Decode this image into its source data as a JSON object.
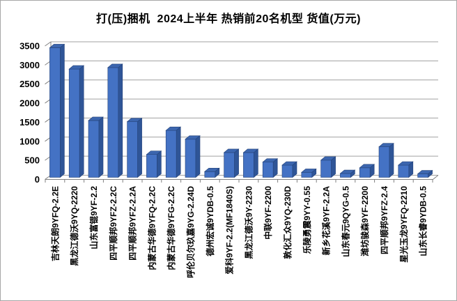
{
  "window": {
    "title": "打(压)捆机  2024上半年 热销前20名机型 货值(万元)"
  },
  "chart_data": {
    "type": "bar",
    "style": "3d-column",
    "title": "打(压)捆机  2024上半年 热销前20名机型 货值(万元)",
    "unit": "万元",
    "categories": [
      "吉林天朗9YFQ-2.2E",
      "黑龙江德沃9YQ-2220",
      "山东富锟9YF-2.2",
      "四平顺邦9YFZ-2.2C",
      "四平顺邦9YFZ-2.2A",
      "内蒙古华德9YFQ-2.2C",
      "内蒙古华德9YFG-2.2C",
      "呼伦贝尔玖嘉9YG-2.24D",
      "德州宏诚9YDB-0.5",
      "爱科9YF-2.2(MF1840S)",
      "黑龙江德沃9Y-2230",
      "中联9YF-2200",
      "敦化汇众9YQ-230D",
      "乐陵勇震9YY-0.55",
      "新乡花溪9YF-2.2A",
      "山东春元9QYG-0.5",
      "潍坊骏森9YF-2200",
      "四平顺邦9YFZ-2.4",
      "星光玉龙9YFQ-2210",
      "山东长睿9YDB-0.5"
    ],
    "values": [
      3400,
      2840,
      1490,
      2880,
      1460,
      600,
      1230,
      1000,
      150,
      650,
      650,
      400,
      320,
      130,
      450,
      100,
      250,
      800,
      320,
      90
    ],
    "xlabel": "",
    "ylabel": "",
    "ylim": [
      0,
      3500
    ],
    "ytick_step": 500,
    "ytick_labels": [
      "3500",
      "3000",
      "2500",
      "2000",
      "1500",
      "1000",
      "500",
      "0"
    ],
    "grid": true,
    "legend": false,
    "colors": {
      "bar_front": "#4472C4",
      "bar_top": "#3C66AF",
      "bar_side": "#2F5597",
      "bar_edge": "#24437A",
      "gridline": "#A0A0A0",
      "axis": "#808080",
      "text": "#000000"
    }
  }
}
